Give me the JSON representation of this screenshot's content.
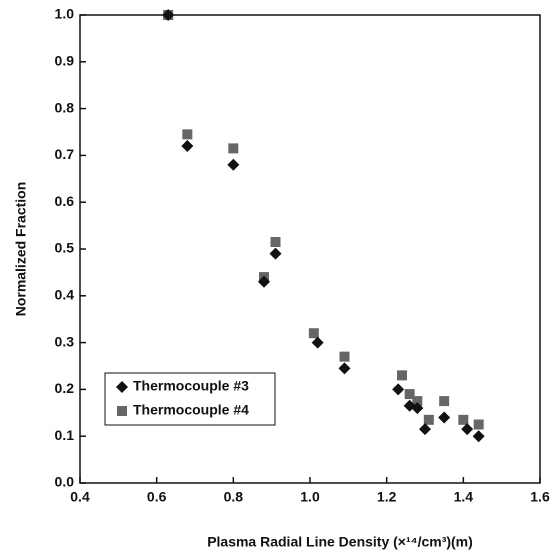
{
  "chart_data": {
    "type": "scatter",
    "xlabel": "Plasma Radial Line Density (×¹⁴/cm³)(m)",
    "ylabel": "Normalized Fraction",
    "xlim": [
      0.4,
      1.6
    ],
    "xticks": [
      0.4,
      0.6,
      0.8,
      {
        "value": 1.0,
        "label": "1.0"
      },
      1.2,
      1.4,
      1.6
    ],
    "ylim": [
      0,
      1
    ],
    "yticks": [
      {
        "value": 0,
        "label": "0.0"
      },
      0.1,
      0.2,
      0.3,
      0.4,
      0.5,
      0.6,
      0.7,
      0.8,
      0.9,
      {
        "value": 1.0,
        "label": "1.0"
      }
    ],
    "legend": "lower left",
    "series": [
      {
        "name": "Thermocouple #3",
        "color": "#111111",
        "marker": "diamond",
        "x": [
          0.63,
          0.68,
          0.8,
          0.88,
          0.91,
          1.02,
          1.09,
          1.23,
          1.26,
          1.28,
          1.3,
          1.35,
          1.41,
          1.44
        ],
        "values": [
          1.0,
          0.72,
          0.68,
          0.43,
          0.49,
          0.3,
          0.245,
          0.2,
          0.165,
          0.16,
          0.115,
          0.14,
          0.115,
          0.1
        ]
      },
      {
        "name": "Thermocouple #4",
        "color": "#666666",
        "marker": "square",
        "x": [
          0.63,
          0.68,
          0.8,
          0.88,
          0.91,
          1.01,
          1.09,
          1.24,
          1.26,
          1.28,
          1.31,
          1.35,
          1.4,
          1.44
        ],
        "values": [
          1.0,
          0.745,
          0.715,
          0.44,
          0.515,
          0.32,
          0.27,
          0.23,
          0.19,
          0.175,
          0.135,
          0.175,
          0.135,
          0.125
        ]
      }
    ]
  }
}
